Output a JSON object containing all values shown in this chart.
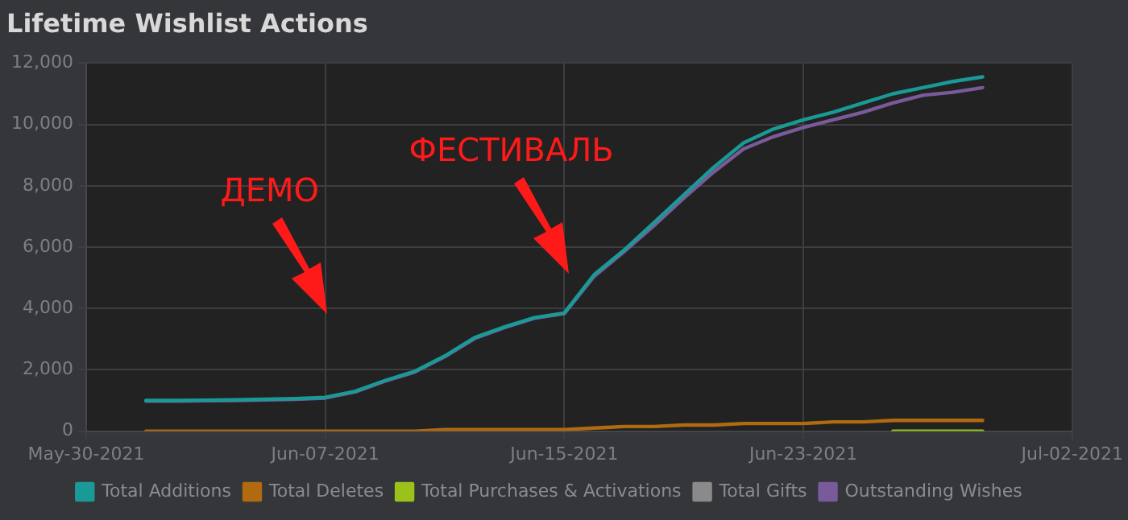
{
  "chart_data": {
    "type": "line",
    "title": "Lifetime Wishlist Actions",
    "x": [
      "2021-06-01",
      "2021-06-02",
      "2021-06-03",
      "2021-06-04",
      "2021-06-05",
      "2021-06-06",
      "2021-06-07",
      "2021-06-08",
      "2021-06-09",
      "2021-06-10",
      "2021-06-11",
      "2021-06-12",
      "2021-06-13",
      "2021-06-14",
      "2021-06-15",
      "2021-06-16",
      "2021-06-17",
      "2021-06-18",
      "2021-06-19",
      "2021-06-20",
      "2021-06-21",
      "2021-06-22",
      "2021-06-23",
      "2021-06-24",
      "2021-06-25",
      "2021-06-26",
      "2021-06-27",
      "2021-06-28",
      "2021-06-29"
    ],
    "series": [
      {
        "name": "Total Additions",
        "color": "#1a9a96",
        "values": [
          1000,
          1000,
          1010,
          1020,
          1040,
          1060,
          1100,
          1300,
          1650,
          1950,
          2450,
          3050,
          3400,
          3700,
          3850,
          5100,
          5900,
          6800,
          7700,
          8600,
          9400,
          9850,
          10150,
          10400,
          10700,
          11000,
          11200,
          11400,
          11550
        ]
      },
      {
        "name": "Total Deletes",
        "color": "#b06a10",
        "values": [
          0,
          0,
          0,
          0,
          0,
          0,
          0,
          0,
          0,
          0,
          50,
          50,
          50,
          50,
          50,
          100,
          150,
          150,
          200,
          200,
          250,
          250,
          250,
          300,
          300,
          350,
          350,
          350,
          350
        ]
      },
      {
        "name": "Total Purchases & Activations",
        "color": "#9bc21a",
        "values": [
          null,
          null,
          null,
          null,
          null,
          null,
          null,
          null,
          null,
          null,
          null,
          null,
          null,
          null,
          null,
          null,
          null,
          null,
          null,
          null,
          null,
          null,
          null,
          null,
          null,
          0,
          0,
          0,
          0
        ]
      },
      {
        "name": "Total Gifts",
        "color": "#8a8a8a",
        "values": [
          null,
          null,
          null,
          null,
          null,
          null,
          null,
          null,
          null,
          null,
          null,
          null,
          null,
          null,
          null,
          null,
          null,
          null,
          null,
          null,
          null,
          null,
          null,
          null,
          null,
          null,
          null,
          null,
          null
        ]
      },
      {
        "name": "Outstanding Wishes",
        "color": "#7a5a9a",
        "values": [
          980,
          980,
          990,
          1000,
          1020,
          1040,
          1080,
          1280,
          1630,
          1930,
          2430,
          3020,
          3380,
          3680,
          3830,
          5050,
          5850,
          6700,
          7600,
          8450,
          9200,
          9600,
          9900,
          10150,
          10400,
          10700,
          10950,
          11050,
          11200
        ]
      }
    ],
    "xlim": [
      "2021-05-30",
      "2021-07-02"
    ],
    "xticks": [
      {
        "value": "2021-05-30",
        "label": "May-30-2021"
      },
      {
        "value": "2021-06-07",
        "label": "Jun-07-2021"
      },
      {
        "value": "2021-06-15",
        "label": "Jun-15-2021"
      },
      {
        "value": "2021-06-23",
        "label": "Jun-23-2021"
      },
      {
        "value": "2021-07-02",
        "label": "Jul-02-2021"
      }
    ],
    "ylim": [
      0,
      12000
    ],
    "yticks": [
      0,
      {
        "value": 2000,
        "label": "2,000"
      },
      {
        "value": 4000,
        "label": "4,000"
      },
      {
        "value": 6000,
        "label": "6,000"
      },
      {
        "value": 8000,
        "label": "8,000"
      },
      {
        "value": 10000,
        "label": "10,000"
      },
      {
        "value": 12000,
        "label": "12,000"
      }
    ],
    "grid": true,
    "legend": "bottom",
    "marker": "none",
    "line_style": "solid",
    "annotations": [
      "ДЕМО",
      "ФЕСТИВАЛЬ"
    ]
  }
}
